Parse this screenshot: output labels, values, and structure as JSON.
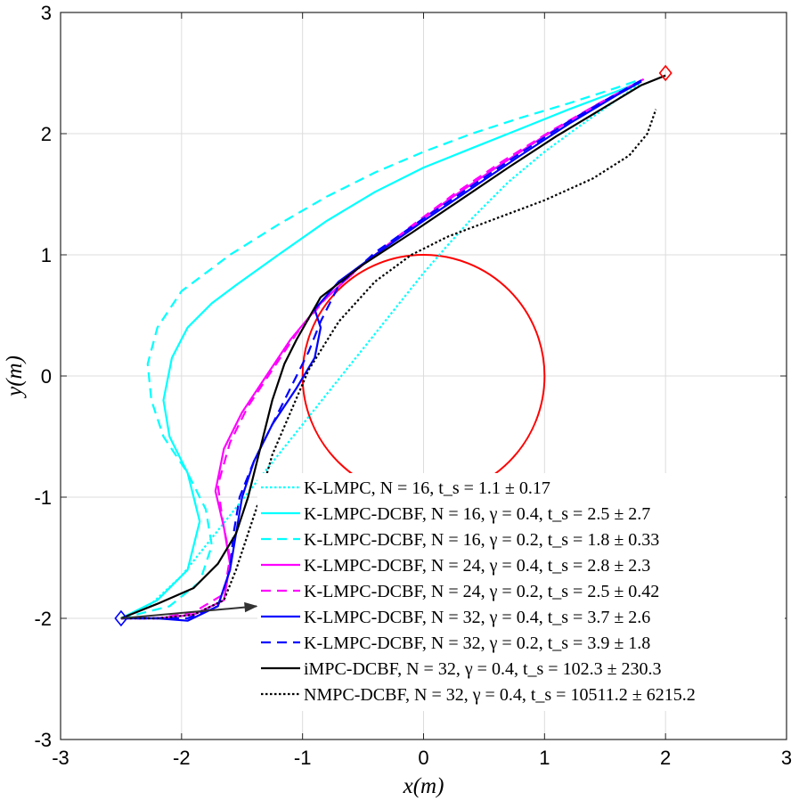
{
  "chart_data": {
    "type": "line",
    "title": "",
    "xlabel": "x(m)",
    "ylabel": "y(m)",
    "xlim": [
      -3,
      3
    ],
    "ylim": [
      -3,
      3
    ],
    "xticks": [
      -3,
      -2,
      -1,
      0,
      1,
      2,
      3
    ],
    "yticks": [
      -3,
      -2,
      -1,
      0,
      1,
      2,
      3
    ],
    "tick_labels_x": [
      "-3",
      "-2",
      "-1",
      "0",
      "1",
      "2",
      "3"
    ],
    "tick_labels_y": [
      "-3",
      "-2",
      "-1",
      "0",
      "1",
      "2",
      "3"
    ],
    "grid": true,
    "legend_position": "bottom-right",
    "start_marker": {
      "x": -2.5,
      "y": -2.0,
      "color": "#0000ff",
      "shape": "diamond"
    },
    "goal_marker": {
      "x": 2.0,
      "y": 2.5,
      "color": "#ff0000",
      "shape": "diamond"
    },
    "obstacle": {
      "type": "circle",
      "center": [
        0,
        0
      ],
      "radius": 1.0,
      "color": "#ff0000"
    },
    "arrow": {
      "from": [
        -2.5,
        -2.0
      ],
      "to": [
        -1.38,
        -1.9
      ],
      "color": "#333333"
    },
    "series": [
      {
        "name": "K-LMPC",
        "legend_text": "K-LMPC, N = 16, t_s = 1.1 ± 0.17",
        "color": "#00ffff",
        "dash": "dotted",
        "x": [
          -2.5,
          -2.25,
          -2.0,
          -1.8,
          -1.6,
          -1.4,
          -1.2,
          -1.0,
          -0.8,
          -0.6,
          -0.4,
          -0.2,
          0.0,
          0.2,
          0.4,
          0.7,
          1.0,
          1.3,
          1.6,
          1.8
        ],
        "y": [
          -2.0,
          -1.88,
          -1.65,
          -1.4,
          -1.15,
          -0.9,
          -0.65,
          -0.4,
          -0.15,
          0.1,
          0.35,
          0.6,
          0.85,
          1.08,
          1.3,
          1.6,
          1.85,
          2.07,
          2.28,
          2.42
        ]
      },
      {
        "name": "K-LMPC-DCBF (N=16, γ=0.4)",
        "legend_text": "K-LMPC-DCBF, N = 16, γ = 0.4, t_s = 2.5 ± 2.7",
        "color": "#00ffff",
        "dash": "solid",
        "x": [
          -2.5,
          -2.2,
          -1.95,
          -1.85,
          -1.95,
          -2.1,
          -2.15,
          -2.08,
          -1.95,
          -1.75,
          -1.55,
          -1.2,
          -0.8,
          -0.4,
          0.0,
          0.4,
          0.8,
          1.2,
          1.6,
          1.8
        ],
        "y": [
          -2.0,
          -1.85,
          -1.6,
          -1.2,
          -0.8,
          -0.5,
          -0.2,
          0.15,
          0.4,
          0.6,
          0.75,
          1.0,
          1.28,
          1.52,
          1.72,
          1.88,
          2.04,
          2.2,
          2.35,
          2.43
        ]
      },
      {
        "name": "K-LMPC-DCBF (N=16, γ=0.2)",
        "legend_text": "K-LMPC-DCBF, N = 16, γ = 0.2, t_s = 1.8 ± 0.33",
        "color": "#00ffff",
        "dash": "dashed",
        "x": [
          -2.5,
          -2.1,
          -1.85,
          -1.75,
          -1.8,
          -1.95,
          -2.15,
          -2.25,
          -2.28,
          -2.2,
          -2.0,
          -1.6,
          -1.2,
          -0.8,
          -0.4,
          0.0,
          0.4,
          0.8,
          1.2,
          1.6,
          1.8
        ],
        "y": [
          -2.0,
          -1.9,
          -1.7,
          -1.4,
          -1.1,
          -0.8,
          -0.5,
          -0.2,
          0.1,
          0.4,
          0.7,
          1.0,
          1.25,
          1.48,
          1.68,
          1.85,
          2.0,
          2.13,
          2.25,
          2.38,
          2.45
        ]
      },
      {
        "name": "K-LMPC-DCBF (N=24, γ=0.4)",
        "legend_text": "K-LMPC-DCBF, N = 24, γ = 0.4, t_s = 2.8 ± 2.3",
        "color": "#ff00ff",
        "dash": "solid",
        "x": [
          -2.5,
          -2.2,
          -1.9,
          -1.65,
          -1.6,
          -1.65,
          -1.72,
          -1.65,
          -1.5,
          -1.3,
          -1.1,
          -0.85,
          -0.55,
          -0.2,
          0.2,
          0.6,
          1.0,
          1.4,
          1.8
        ],
        "y": [
          -2.0,
          -2.0,
          -1.97,
          -1.85,
          -1.55,
          -1.25,
          -0.95,
          -0.6,
          -0.3,
          0.0,
          0.3,
          0.6,
          0.88,
          1.15,
          1.45,
          1.72,
          1.98,
          2.22,
          2.44
        ]
      },
      {
        "name": "K-LMPC-DCBF (N=24, γ=0.2)",
        "legend_text": "K-LMPC-DCBF, N = 24, γ = 0.2, t_s = 2.5 ± 0.42",
        "color": "#ff00ff",
        "dash": "dashed",
        "x": [
          -2.5,
          -2.2,
          -1.9,
          -1.65,
          -1.6,
          -1.66,
          -1.7,
          -1.6,
          -1.45,
          -1.25,
          -1.05,
          -0.8,
          -0.5,
          -0.15,
          0.25,
          0.65,
          1.05,
          1.45,
          1.82
        ],
        "y": [
          -2.0,
          -2.0,
          -1.95,
          -1.8,
          -1.5,
          -1.2,
          -0.9,
          -0.55,
          -0.25,
          0.05,
          0.35,
          0.65,
          0.92,
          1.2,
          1.5,
          1.77,
          2.02,
          2.25,
          2.45
        ]
      },
      {
        "name": "K-LMPC-DCBF (N=32, γ=0.4)",
        "legend_text": "K-LMPC-DCBF, N = 32, γ = 0.4, t_s = 3.7 ± 2.6",
        "color": "#0000ff",
        "dash": "solid",
        "x": [
          -2.5,
          -2.2,
          -1.95,
          -1.7,
          -1.6,
          -1.55,
          -1.5,
          -1.4,
          -1.25,
          -1.05,
          -0.9,
          -0.85,
          -0.9,
          -0.7,
          -0.4,
          0.0,
          0.4,
          0.8,
          1.2,
          1.6,
          1.8
        ],
        "y": [
          -2.0,
          -2.0,
          -2.02,
          -1.9,
          -1.6,
          -1.3,
          -1.0,
          -0.7,
          -0.4,
          -0.1,
          0.15,
          0.4,
          0.55,
          0.78,
          1.0,
          1.28,
          1.55,
          1.82,
          2.08,
          2.32,
          2.43
        ]
      },
      {
        "name": "K-LMPC-DCBF (N=32, γ=0.2)",
        "legend_text": "K-LMPC-DCBF, N = 32, γ = 0.2, t_s = 3.9 ± 1.8",
        "color": "#0000ff",
        "dash": "dashed",
        "x": [
          -2.5,
          -2.2,
          -1.95,
          -1.7,
          -1.6,
          -1.57,
          -1.52,
          -1.4,
          -1.25,
          -1.1,
          -0.95,
          -0.85,
          -0.7,
          -0.4,
          0.0,
          0.4,
          0.8,
          1.2,
          1.6,
          1.8
        ],
        "y": [
          -2.0,
          -2.0,
          -2.0,
          -1.9,
          -1.6,
          -1.3,
          -1.0,
          -0.7,
          -0.4,
          -0.1,
          0.2,
          0.45,
          0.75,
          1.02,
          1.3,
          1.57,
          1.84,
          2.1,
          2.33,
          2.44
        ]
      },
      {
        "name": "iMPC-DCBF",
        "legend_text": "iMPC-DCBF, N = 32, γ = 0.4, t_s = 102.3 ± 230.3",
        "color": "#000000",
        "dash": "solid",
        "x": [
          -2.5,
          -2.2,
          -1.9,
          -1.7,
          -1.55,
          -1.45,
          -1.35,
          -1.25,
          -1.15,
          -1.05,
          -0.85,
          -0.5,
          -0.1,
          0.3,
          0.7,
          1.1,
          1.5,
          1.8,
          2.0
        ],
        "y": [
          -2.0,
          -1.88,
          -1.75,
          -1.55,
          -1.3,
          -1.0,
          -0.6,
          -0.2,
          0.1,
          0.3,
          0.65,
          0.92,
          1.18,
          1.45,
          1.72,
          1.98,
          2.22,
          2.4,
          2.48
        ]
      },
      {
        "name": "NMPC-DCBF",
        "legend_text": "NMPC-DCBF, N = 32, γ = 0.4, t_s = 10511.2 ± 6215.2",
        "color": "#000000",
        "dash": "dotted",
        "x": [
          -2.5,
          -2.2,
          -1.9,
          -1.65,
          -1.55,
          -1.45,
          -1.35,
          -1.25,
          -1.1,
          -0.95,
          -0.7,
          -0.4,
          -0.1,
          0.2,
          0.6,
          1.0,
          1.4,
          1.7,
          1.85,
          1.92
        ],
        "y": [
          -2.0,
          -2.0,
          -1.97,
          -1.85,
          -1.6,
          -1.3,
          -1.0,
          -0.65,
          -0.3,
          0.05,
          0.45,
          0.78,
          1.0,
          1.15,
          1.3,
          1.45,
          1.63,
          1.82,
          2.0,
          2.2
        ]
      }
    ]
  }
}
